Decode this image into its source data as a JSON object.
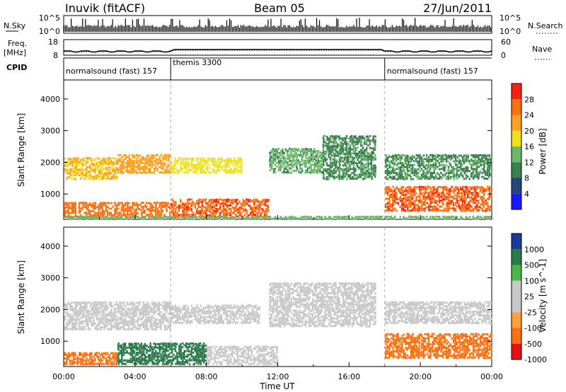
{
  "header": {
    "station": "Inuvik (fitACF)",
    "beam": "Beam 05",
    "date": "27/Jun/2011"
  },
  "nsky_panel": {
    "left_label": "N.Sky",
    "left_ticks": [
      "10^5",
      "10^0"
    ],
    "right_label": "N.Search",
    "right_ticks": [
      "10^5",
      "10^0"
    ]
  },
  "freq_panel": {
    "left_label": "Freq.",
    "left_unit": "[MHz]",
    "left_ticks": [
      "18",
      "8"
    ],
    "right_label": "Nave",
    "right_ticks": [
      "60",
      "0"
    ]
  },
  "cpid_panel": {
    "label": "CPID",
    "segments": [
      {
        "name": "normalsound (fast) 157",
        "start_hour": 0,
        "end_hour": 6
      },
      {
        "name": "themis 3300",
        "start_hour": 6,
        "end_hour": 18
      },
      {
        "name": "normalsound (fast) 157",
        "start_hour": 18,
        "end_hour": 24
      }
    ]
  },
  "colors": {
    "power": [
      "#1a1aff",
      "#24447a",
      "#3c8050",
      "#6ab86a",
      "#f0e020",
      "#ffa020",
      "#ff7010",
      "#ff2010"
    ],
    "velocity": [
      "#e81010",
      "#ff7010",
      "#ffa040",
      "#c8c8c8",
      "#c8c8c8",
      "#48b848",
      "#2a7a4a",
      "#1a3a9a"
    ]
  },
  "chart_data": [
    {
      "type": "heatmap",
      "name": "power",
      "xlabel": "",
      "ylabel": "Slant Range [km]",
      "x_unit": "hours UT",
      "xlim": [
        0,
        24
      ],
      "ylim": [
        200,
        4600
      ],
      "y_ticks": [
        1000,
        2000,
        3000,
        4000
      ],
      "colorbar": {
        "label": "Power [dB]",
        "ticks": [
          "4",
          "8",
          "12",
          "16",
          "20",
          "24",
          "28"
        ],
        "range": [
          0,
          30
        ]
      },
      "regions": [
        {
          "t0": 0.0,
          "t1": 6.0,
          "r0": 300,
          "r1": 800,
          "value": 26
        },
        {
          "t0": 0.0,
          "t1": 3.0,
          "r0": 1500,
          "r1": 2200,
          "value": 20
        },
        {
          "t0": 3.0,
          "t1": 6.0,
          "r0": 1700,
          "r1": 2300,
          "value": 22
        },
        {
          "t0": 6.0,
          "t1": 11.5,
          "r0": 300,
          "r1": 900,
          "value": 27
        },
        {
          "t0": 6.0,
          "t1": 10.0,
          "r0": 1700,
          "r1": 2200,
          "value": 18
        },
        {
          "t0": 11.5,
          "t1": 14.5,
          "r0": 1700,
          "r1": 2500,
          "value": 13
        },
        {
          "t0": 14.5,
          "t1": 17.5,
          "r0": 1500,
          "r1": 2900,
          "value": 11
        },
        {
          "t0": 18.0,
          "t1": 24.0,
          "r0": 500,
          "r1": 1300,
          "value": 27
        },
        {
          "t0": 18.0,
          "t1": 24.0,
          "r0": 1500,
          "r1": 2300,
          "value": 11
        },
        {
          "t0": 0.0,
          "t1": 24.0,
          "r0": 200,
          "r1": 350,
          "value": 14
        }
      ]
    },
    {
      "type": "heatmap",
      "name": "velocity",
      "xlabel": "Time UT",
      "ylabel": "Slant Range [km]",
      "x_unit": "hours UT",
      "xlim": [
        0,
        24
      ],
      "x_ticks": [
        "00:00",
        "04:00",
        "08:00",
        "12:00",
        "16:00",
        "20:00",
        "00:00"
      ],
      "ylim": [
        200,
        4600
      ],
      "y_ticks": [
        1000,
        2000,
        3000,
        4000
      ],
      "colorbar": {
        "label": "Velocity [m s^-1]",
        "ticks": [
          "1000",
          "500",
          "100",
          "25",
          "-25",
          "-100",
          "-500",
          "-1000"
        ]
      },
      "regions": [
        {
          "t0": 0.0,
          "t1": 3.0,
          "r0": 300,
          "r1": 700,
          "value": -150
        },
        {
          "t0": 0.0,
          "t1": 6.0,
          "r0": 1400,
          "r1": 2300,
          "value": 0
        },
        {
          "t0": 3.0,
          "t1": 8.0,
          "r0": 300,
          "r1": 1000,
          "value": 150
        },
        {
          "t0": 6.0,
          "t1": 11.0,
          "r0": 1600,
          "r1": 2200,
          "value": 0
        },
        {
          "t0": 8.0,
          "t1": 12.0,
          "r0": 300,
          "r1": 900,
          "value": 0
        },
        {
          "t0": 11.5,
          "t1": 17.5,
          "r0": 1500,
          "r1": 2900,
          "value": 0
        },
        {
          "t0": 18.0,
          "t1": 24.0,
          "r0": 500,
          "r1": 1300,
          "value": -300
        },
        {
          "t0": 18.0,
          "t1": 24.0,
          "r0": 1600,
          "r1": 2300,
          "value": 0
        }
      ]
    }
  ]
}
